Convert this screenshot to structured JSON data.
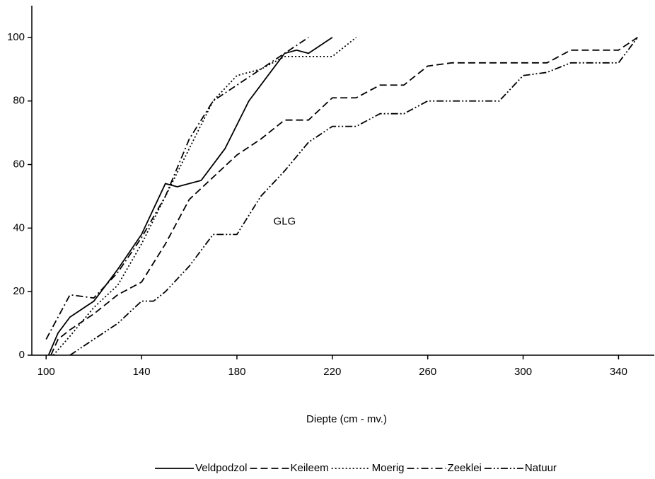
{
  "chart_data": {
    "type": "line",
    "xlabel": "Diepte (cm - mv.)",
    "annotation": {
      "text": "GLG",
      "x": 200,
      "y": 42
    },
    "xlim": [
      94,
      355
    ],
    "ylim": [
      0,
      110
    ],
    "xticks": [
      100,
      140,
      180,
      220,
      260,
      300,
      340
    ],
    "yticks": [
      0,
      20,
      40,
      60,
      80,
      100
    ],
    "legend": "bottom",
    "series": [
      {
        "name": "Veldpodzol",
        "color": "#000000",
        "line_style": "solid",
        "x": [
          101,
          105,
          110,
          120,
          130,
          140,
          145,
          150,
          155,
          165,
          175,
          185,
          195,
          200,
          205,
          210,
          220
        ],
        "values": [
          0,
          7,
          12,
          17,
          27,
          38,
          46,
          54,
          53,
          55,
          65,
          80,
          90,
          95,
          96,
          95,
          100
        ]
      },
      {
        "name": "Keileem",
        "color": "#000000",
        "line_style": "dashed",
        "x": [
          102,
          105,
          110,
          120,
          130,
          140,
          150,
          160,
          170,
          180,
          190,
          200,
          210,
          220,
          230,
          240,
          250,
          260,
          270,
          300,
          310,
          320,
          330,
          340,
          348
        ],
        "values": [
          0,
          5,
          8,
          13,
          19,
          23,
          35,
          49,
          56,
          63,
          68,
          74,
          74,
          81,
          81,
          85,
          85,
          91,
          92,
          92,
          92,
          96,
          96,
          96,
          100
        ]
      },
      {
        "name": "Moerig",
        "color": "#000000",
        "line_style": "dotted",
        "x": [
          103,
          110,
          120,
          130,
          140,
          150,
          160,
          170,
          180,
          190,
          200,
          210,
          220,
          230
        ],
        "values": [
          0,
          6,
          15,
          22,
          35,
          50,
          65,
          80,
          88,
          90,
          94,
          94,
          94,
          100
        ]
      },
      {
        "name": "Zeeklei",
        "color": "#000000",
        "line_style": "dashdot",
        "x": [
          100,
          110,
          120,
          130,
          140,
          150,
          160,
          170,
          180,
          190,
          200,
          210
        ],
        "values": [
          5,
          19,
          18,
          26,
          37,
          50,
          68,
          80,
          85,
          90,
          95,
          100
        ]
      },
      {
        "name": "Natuur",
        "color": "#000000",
        "line_style": "dashdotdot",
        "x": [
          110,
          120,
          130,
          140,
          145,
          150,
          160,
          170,
          180,
          190,
          200,
          210,
          220,
          230,
          240,
          250,
          260,
          270,
          290,
          300,
          310,
          320,
          330,
          340,
          348
        ],
        "values": [
          0,
          5,
          10,
          17,
          17,
          20,
          28,
          38,
          38,
          50,
          58,
          67,
          72,
          72,
          76,
          76,
          80,
          80,
          80,
          88,
          89,
          92,
          92,
          92,
          100
        ]
      }
    ]
  }
}
